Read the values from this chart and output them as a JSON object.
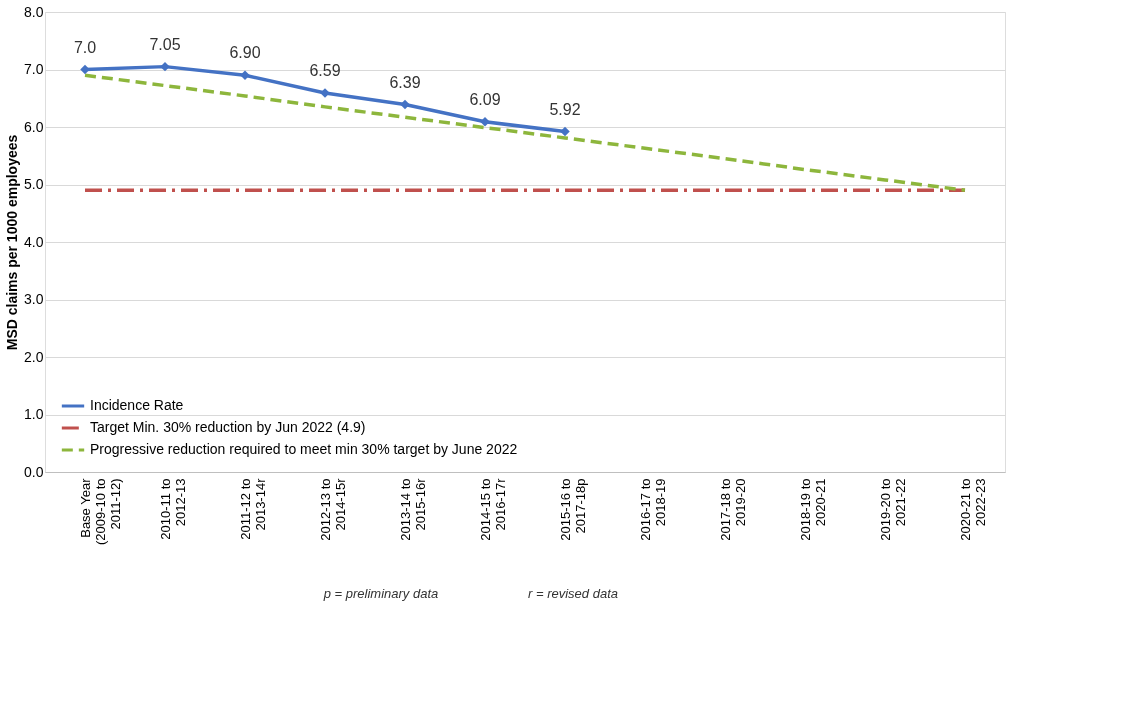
{
  "chart_data": {
    "type": "line",
    "categories": [
      "Base Year\n(2009-10 to\n2011-12)",
      "2010-11 to\n2012-13",
      "2011-12 to\n2013-14r",
      "2012-13 to\n2014-15r",
      "2013-14 to\n2015-16r",
      "2014-15 to\n2016-17r",
      "2015-16 to\n2017-18p",
      "2016-17 to\n2018-19",
      "2017-18 to\n2019-20",
      "2018-19 to\n2020-21",
      "2019-20 to\n2021-22",
      "2020-21 to\n2022-23"
    ],
    "ylabel": "MSD claims per 1000 employees",
    "ylim": [
      0,
      8
    ],
    "yticks": [
      {
        "value": 0,
        "label": "0.0"
      },
      {
        "value": 1,
        "label": "1.0"
      },
      {
        "value": 2,
        "label": "2.0"
      },
      {
        "value": 3,
        "label": "3.0"
      },
      {
        "value": 4,
        "label": "4.0"
      },
      {
        "value": 5,
        "label": "5.0"
      },
      {
        "value": 6,
        "label": "6.0"
      },
      {
        "value": 7,
        "label": "7.0"
      },
      {
        "value": 8,
        "label": "8.0"
      }
    ],
    "grid": "y",
    "legend": "bottom left",
    "series": [
      {
        "name": "Incidence Rate",
        "color": "#4472c4",
        "marker": "diamond",
        "line_style": "solid",
        "values": [
          7.0,
          7.05,
          6.9,
          6.59,
          6.39,
          6.09,
          5.92,
          null,
          null,
          null,
          null,
          null
        ],
        "value_labels": [
          "7.0",
          "7.05",
          "6.90",
          "6.59",
          "6.39",
          "6.09",
          "5.92",
          null,
          null,
          null,
          null,
          null
        ]
      },
      {
        "name": "Target Min. 30% reduction by Jun 2022 (4.9)",
        "color": "#c0504d",
        "marker": "none",
        "line_style": "dashdot",
        "values": [
          4.9,
          4.9,
          4.9,
          4.9,
          4.9,
          4.9,
          4.9,
          4.9,
          4.9,
          4.9,
          4.9,
          4.9
        ]
      },
      {
        "name": "Progressive reduction required to meet min 30% target by June 2022",
        "color": "#8db63c",
        "marker": "none",
        "line_style": "dashed",
        "values": [
          6.9,
          6.72,
          6.54,
          6.35,
          6.17,
          5.99,
          5.81,
          5.63,
          5.45,
          5.26,
          5.08,
          4.9
        ]
      }
    ],
    "annotations": [
      "p = preliminary data",
      "r = revised data"
    ]
  }
}
